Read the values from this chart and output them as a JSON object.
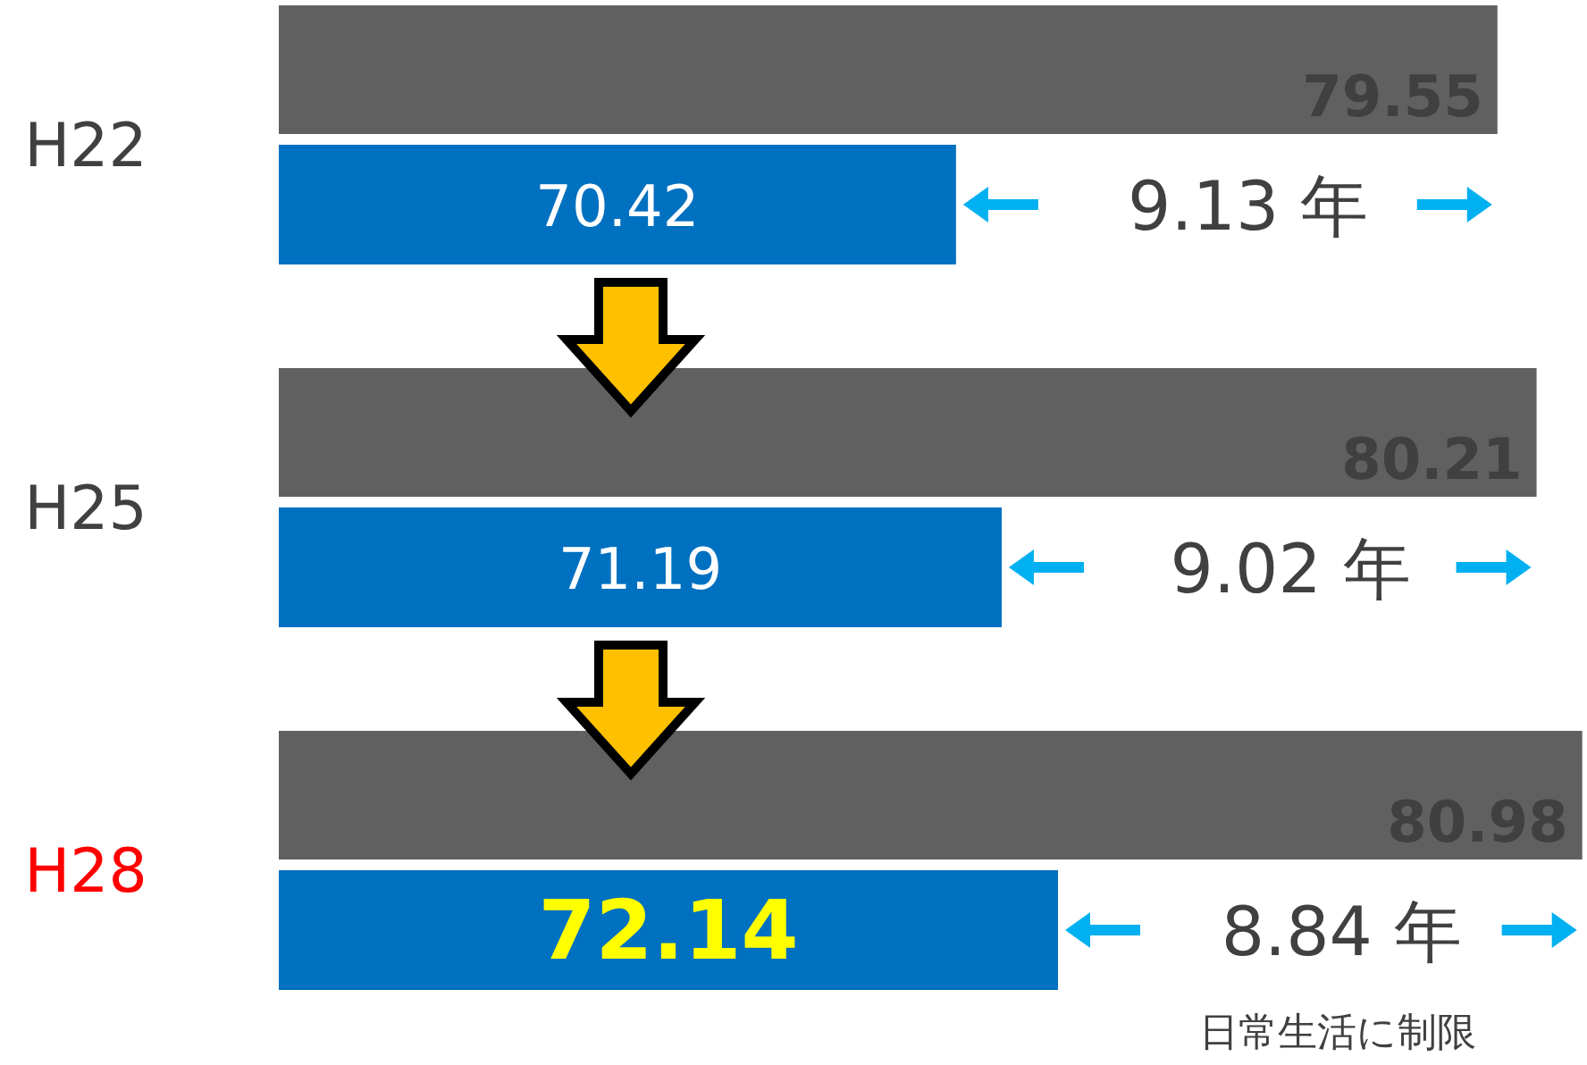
{
  "chart_data": {
    "type": "bar",
    "orientation": "horizontal",
    "categories": [
      "H22",
      "H25",
      "H28"
    ],
    "series": [
      {
        "color": "#606060",
        "values": [
          79.55,
          80.21,
          80.98
        ]
      },
      {
        "color": "#0070c0",
        "values": [
          70.42,
          71.19,
          72.14
        ]
      }
    ],
    "xlim": [
      59,
      81
    ],
    "tick_labels": "y",
    "data_labels": true,
    "annotations": [
      "9.13 年",
      "9.02 年",
      "8.84 年",
      "日常生活に制限"
    ]
  }
}
